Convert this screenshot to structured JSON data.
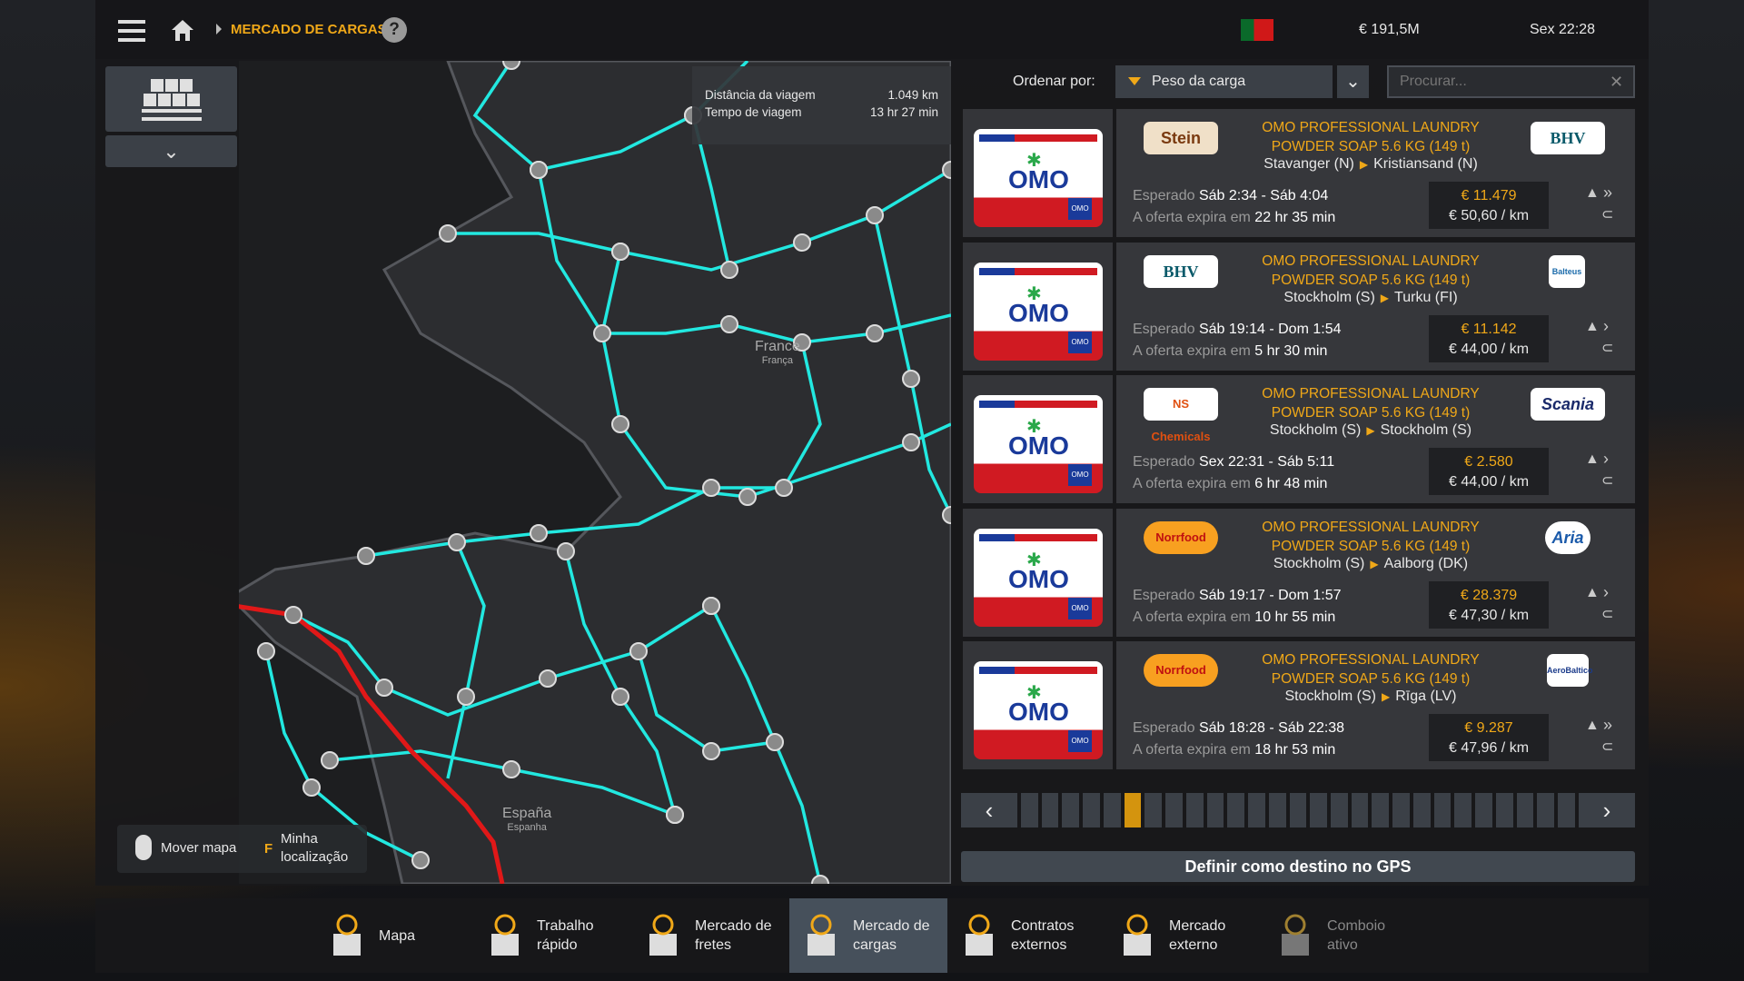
{
  "topbar": {
    "breadcrumb": "MERCADO DE CARGAS",
    "help": "?",
    "money": "€ 191,5M",
    "time": "Sex 22:28",
    "flag": "portugal-flag"
  },
  "map": {
    "info": {
      "distance_label": "Distância da viagem",
      "distance_value": "1.049 km",
      "time_label": "Tempo de viagem",
      "time_value": "13 hr 27 min"
    },
    "labels": {
      "france": "France",
      "france_sub": "França",
      "spain": "España",
      "spain_sub": "Espanha"
    },
    "move_map": "Mover mapa",
    "my_location_key": "F",
    "my_location": "Minha localização",
    "colors": {
      "roads": "#22e8e0",
      "route": "#e01818"
    }
  },
  "sort": {
    "label": "Ordenar por:",
    "selected": "Peso da carga"
  },
  "search": {
    "placeholder": "Procurar..."
  },
  "cargo_name_1": "OMO PROFESSIONAL LAUNDRY",
  "cargo_name_2": "POWDER SOAP 5.6 KG (149 t)",
  "labels": {
    "expected": "Esperado",
    "expires": "A oferta expira em"
  },
  "offers": [
    {
      "source": "Stein",
      "destination": "BHV",
      "from": "Stavanger (N)",
      "to": "Kristiansand (N)",
      "expected": "Sáb 2:34 - Sáb 4:04",
      "expires": "22 hr 35 min",
      "price": "€ 11.479",
      "per_km": "€ 50,60 / km",
      "speed": "double"
    },
    {
      "source": "BHV",
      "destination": "Balteus",
      "from": "Stockholm (S)",
      "to": "Turku (FI)",
      "expected": "Sáb 19:14 - Dom 1:54",
      "expires": "5 hr 30 min",
      "price": "€ 11.142",
      "per_km": "€ 44,00 / km",
      "speed": "single"
    },
    {
      "source": "NS Chemicals",
      "destination": "Scania",
      "from": "Stockholm (S)",
      "to": "Stockholm (S)",
      "expected": "Sex 22:31 - Sáb 5:11",
      "expires": "6 hr 48 min",
      "price": "€ 2.580",
      "per_km": "€ 44,00 / km",
      "speed": "single"
    },
    {
      "source": "Norrfood",
      "destination": "Aria",
      "from": "Stockholm (S)",
      "to": "Aalborg (DK)",
      "expected": "Sáb 19:17 - Dom 1:57",
      "expires": "10 hr 55 min",
      "price": "€ 28.379",
      "per_km": "€ 47,30 / km",
      "speed": "single"
    },
    {
      "source": "Norrfood",
      "destination": "AeroBaltico",
      "from": "Stockholm (S)",
      "to": "Rīga (LV)",
      "expected": "Sáb 18:28 - Sáb 22:38",
      "expires": "18 hr 53 min",
      "price": "€ 9.287",
      "per_km": "€ 47,96 / km",
      "speed": "double"
    }
  ],
  "pager": {
    "pages": 27,
    "current": 6
  },
  "gps_button": "Definir como destino no GPS",
  "nav": [
    {
      "label": "Mapa",
      "icon": "map-icon"
    },
    {
      "label": "Trabalho rápido",
      "icon": "quick-job-icon"
    },
    {
      "label": "Mercado de fretes",
      "icon": "freight-market-icon"
    },
    {
      "label": "Mercado de cargas",
      "icon": "cargo-market-icon",
      "active": true
    },
    {
      "label": "Contratos externos",
      "icon": "external-contracts-icon"
    },
    {
      "label": "Mercado externo",
      "icon": "external-market-icon"
    },
    {
      "label": "Comboio ativo",
      "icon": "active-convoy-icon",
      "disabled": true
    }
  ]
}
